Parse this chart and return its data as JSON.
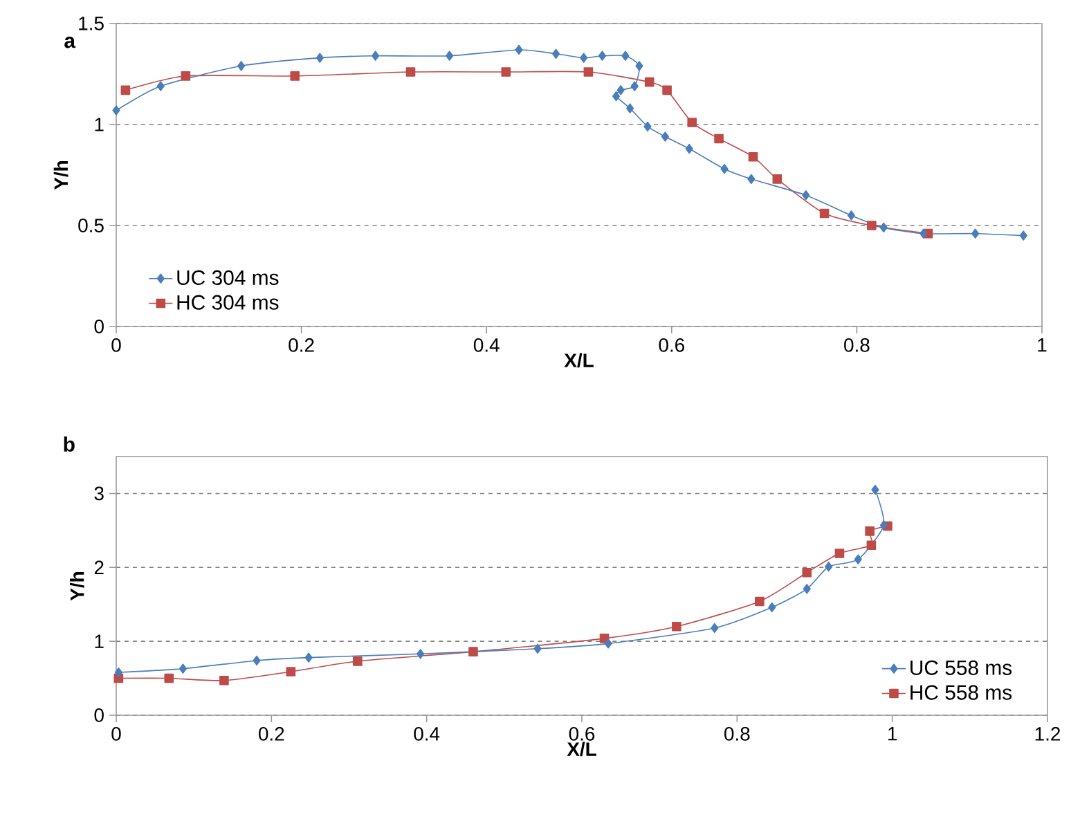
{
  "chart_data": [
    {
      "type": "line",
      "annotations": [
        "a"
      ],
      "xlabel": "X/L",
      "ylabel": "Y/h",
      "xlim": [
        0,
        1
      ],
      "ylim": [
        0,
        1.5
      ],
      "xticks": [
        0,
        0.2,
        0.4,
        0.6,
        0.8,
        1
      ],
      "yticks": [
        0,
        0.5,
        1,
        1.5
      ],
      "grid": "y",
      "legend": "bottom left",
      "series": [
        {
          "name": "UC 304 ms",
          "color": "#4a7ebb",
          "marker": "diamond",
          "x": [
            0,
            0.048,
            0.135,
            0.22,
            0.28,
            0.36,
            0.435,
            0.475,
            0.505,
            0.525,
            0.55,
            0.565,
            0.56,
            0.545,
            0.54,
            0.555,
            0.574,
            0.593,
            0.619,
            0.657,
            0.686,
            0.745,
            0.794,
            0.829,
            0.872,
            0.928,
            0.98
          ],
          "values": [
            1.07,
            1.19,
            1.29,
            1.33,
            1.34,
            1.34,
            1.37,
            1.35,
            1.33,
            1.34,
            1.34,
            1.29,
            1.19,
            1.17,
            1.14,
            1.08,
            0.99,
            0.94,
            0.88,
            0.78,
            0.73,
            0.65,
            0.55,
            0.49,
            0.46,
            0.46,
            0.45
          ]
        },
        {
          "name": "HC 304 ms",
          "color": "#be4b48",
          "marker": "square",
          "x": [
            0.01,
            0.075,
            0.193,
            0.318,
            0.421,
            0.51,
            0.576,
            0.595,
            0.622,
            0.651,
            0.688,
            0.714,
            0.765,
            0.816,
            0.877
          ],
          "values": [
            1.17,
            1.24,
            1.24,
            1.26,
            1.26,
            1.26,
            1.21,
            1.17,
            1.01,
            0.93,
            0.84,
            0.73,
            0.56,
            0.5,
            0.46
          ]
        }
      ]
    },
    {
      "type": "line",
      "annotations": [
        "b"
      ],
      "xlabel": "X/L",
      "ylabel": "Y/h",
      "xlim": [
        0,
        1.2
      ],
      "ylim": [
        0,
        3.5
      ],
      "xticks": [
        0,
        0.2,
        0.4,
        0.6,
        0.8,
        1,
        1.2
      ],
      "yticks": [
        0,
        1,
        2,
        3
      ],
      "grid": "y",
      "legend": "bottom right",
      "series": [
        {
          "name": "UC 558 ms",
          "color": "#4a7ebb",
          "marker": "diamond",
          "x": [
            0.003,
            0.086,
            0.181,
            0.248,
            0.392,
            0.543,
            0.634,
            0.771,
            0.845,
            0.89,
            0.918,
            0.956,
            0.989,
            0.978
          ],
          "values": [
            0.58,
            0.63,
            0.74,
            0.78,
            0.83,
            0.9,
            0.97,
            1.18,
            1.46,
            1.71,
            2.01,
            2.11,
            2.57,
            3.05
          ]
        },
        {
          "name": "HC 558 ms",
          "color": "#be4b48",
          "marker": "square",
          "x": [
            0.003,
            0.068,
            0.139,
            0.225,
            0.311,
            0.46,
            0.629,
            0.722,
            0.829,
            0.89,
            0.932,
            0.973,
            0.971,
            0.994
          ],
          "values": [
            0.5,
            0.5,
            0.47,
            0.59,
            0.73,
            0.86,
            1.04,
            1.2,
            1.54,
            1.93,
            2.19,
            2.3,
            2.49,
            2.56
          ]
        }
      ]
    }
  ]
}
